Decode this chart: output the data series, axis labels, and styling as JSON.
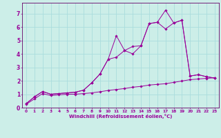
{
  "xlabel": "Windchill (Refroidissement éolien,°C)",
  "background_color": "#cceee8",
  "grid_color": "#aadddd",
  "line_color": "#990099",
  "spine_color": "#660066",
  "xlim": [
    -0.5,
    23.5
  ],
  "ylim": [
    0,
    7.8
  ],
  "xticks": [
    0,
    1,
    2,
    3,
    4,
    5,
    6,
    7,
    8,
    9,
    10,
    11,
    12,
    13,
    14,
    15,
    16,
    17,
    18,
    19,
    20,
    21,
    22,
    23
  ],
  "yticks": [
    0,
    1,
    2,
    3,
    4,
    5,
    6,
    7
  ],
  "series1_x": [
    0,
    1,
    2,
    3,
    4,
    5,
    6,
    7,
    8,
    9,
    10,
    11,
    12,
    13,
    14,
    15,
    16,
    17,
    18,
    19,
    20,
    21,
    22,
    23
  ],
  "series1_y": [
    0.3,
    0.8,
    1.2,
    1.0,
    1.05,
    1.1,
    1.15,
    1.3,
    1.85,
    2.5,
    3.6,
    3.75,
    4.25,
    4.55,
    4.6,
    6.25,
    6.35,
    5.85,
    6.3,
    6.5,
    2.35,
    2.45,
    2.3,
    2.2
  ],
  "series2_x": [
    0,
    1,
    2,
    3,
    4,
    5,
    6,
    7,
    8,
    9,
    10,
    11,
    12,
    13,
    14,
    15,
    16,
    17,
    18,
    19,
    20,
    21,
    22,
    23
  ],
  "series2_y": [
    0.3,
    0.8,
    1.2,
    1.0,
    1.05,
    1.1,
    1.15,
    1.3,
    1.85,
    2.5,
    3.6,
    5.35,
    4.25,
    4.0,
    4.6,
    6.25,
    6.35,
    7.25,
    6.3,
    6.5,
    2.35,
    2.45,
    2.3,
    2.2
  ],
  "series3_x": [
    0,
    1,
    2,
    3,
    4,
    5,
    6,
    7,
    8,
    9,
    10,
    11,
    12,
    13,
    14,
    15,
    16,
    17,
    18,
    19,
    20,
    21,
    22,
    23
  ],
  "series3_y": [
    0.25,
    0.65,
    1.05,
    0.9,
    0.95,
    1.0,
    1.0,
    1.05,
    1.1,
    1.18,
    1.28,
    1.35,
    1.42,
    1.52,
    1.58,
    1.68,
    1.73,
    1.78,
    1.88,
    1.98,
    2.08,
    2.13,
    2.18,
    2.22
  ]
}
